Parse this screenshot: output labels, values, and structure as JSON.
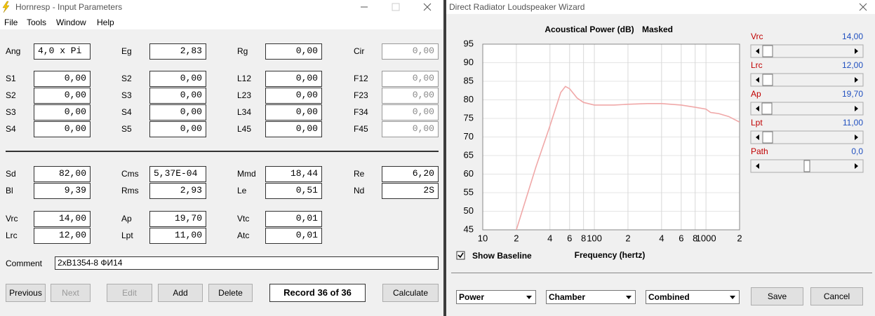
{
  "left_window": {
    "title": "Hornresp - Input Parameters",
    "menu": [
      "File",
      "Tools",
      "Window",
      "Help"
    ],
    "rows": [
      [
        {
          "label": "Ang",
          "value": "4,0 x Pi"
        },
        {
          "label": "Eg",
          "value": "2,83"
        },
        {
          "label": "Rg",
          "value": "0,00"
        },
        {
          "label": "Cir",
          "value": "0,00"
        }
      ],
      [
        {
          "label": "S1",
          "value": "0,00"
        },
        {
          "label": "S2",
          "value": "0,00"
        },
        {
          "label": "L12",
          "value": "0,00"
        },
        {
          "label": "F12",
          "value": "0,00"
        }
      ],
      [
        {
          "label": "S2",
          "value": "0,00"
        },
        {
          "label": "S3",
          "value": "0,00"
        },
        {
          "label": "L23",
          "value": "0,00"
        },
        {
          "label": "F23",
          "value": "0,00"
        }
      ],
      [
        {
          "label": "S3",
          "value": "0,00"
        },
        {
          "label": "S4",
          "value": "0,00"
        },
        {
          "label": "L34",
          "value": "0,00"
        },
        {
          "label": "F34",
          "value": "0,00"
        }
      ],
      [
        {
          "label": "S4",
          "value": "0,00"
        },
        {
          "label": "S5",
          "value": "0,00"
        },
        {
          "label": "L45",
          "value": "0,00"
        },
        {
          "label": "F45",
          "value": "0,00"
        }
      ],
      [
        {
          "label": "Sd",
          "value": "82,00"
        },
        {
          "label": "Cms",
          "value": "5,37E-04"
        },
        {
          "label": "Mmd",
          "value": "18,44"
        },
        {
          "label": "Re",
          "value": "6,20"
        }
      ],
      [
        {
          "label": "Bl",
          "value": "9,39"
        },
        {
          "label": "Rms",
          "value": "2,93"
        },
        {
          "label": "Le",
          "value": "0,51"
        },
        {
          "label": "Nd",
          "value": "2S"
        }
      ],
      [
        {
          "label": "Vrc",
          "value": "14,00"
        },
        {
          "label": "Ap",
          "value": "19,70"
        },
        {
          "label": "Vtc",
          "value": "0,01"
        },
        null
      ],
      [
        {
          "label": "Lrc",
          "value": "12,00"
        },
        {
          "label": "Lpt",
          "value": "11,00"
        },
        {
          "label": "Atc",
          "value": "0,01"
        },
        null
      ]
    ],
    "comment": {
      "label": "Comment",
      "value": "2xB1354-8 ФИ14"
    },
    "buttons": [
      "Previous",
      "Next",
      "Edit",
      "Add",
      "Delete"
    ],
    "record": "Record 36 of 36",
    "calculate": "Calculate"
  },
  "right_window": {
    "title": "Direct Radiator Loudspeaker Wizard",
    "sliders": [
      {
        "label": "Vrc",
        "value": "14,00"
      },
      {
        "label": "Lrc",
        "value": "12,00"
      },
      {
        "label": "Ap",
        "value": "19,70"
      },
      {
        "label": "Lpt",
        "value": "11,00"
      },
      {
        "label": "Path",
        "value": "0,0"
      }
    ],
    "show_baseline": "Show Baseline",
    "dropdowns": [
      "Power",
      "Chamber",
      "Combined"
    ],
    "buttons": [
      "Save",
      "Cancel"
    ]
  },
  "chart_data": {
    "type": "line",
    "title": "Acoustical Power (dB)",
    "subtitle": "Masked",
    "x_label": "Frequency (hertz)",
    "x": [
      20,
      30,
      40,
      50,
      55,
      60,
      70,
      80,
      100,
      150,
      200,
      300,
      400,
      600,
      800,
      1000,
      1100,
      1300,
      1600,
      2000
    ],
    "values": [
      45,
      62,
      73,
      82,
      83.6,
      83,
      80.5,
      79.3,
      78.6,
      78.6,
      78.8,
      79,
      79,
      78.6,
      78,
      77.5,
      76.6,
      76.3,
      75.5,
      74
    ],
    "color": "#f0a8a8",
    "log_x": true,
    "grid": true,
    "xlim": [
      10,
      2000
    ],
    "ylim": [
      45,
      95
    ],
    "xticks": [
      10,
      {
        "value": 20,
        "label": "2"
      },
      {
        "value": 40,
        "label": "4"
      },
      {
        "value": 60,
        "label": "6"
      },
      {
        "value": 80,
        "label": "8"
      },
      100,
      {
        "value": 200,
        "label": "2"
      },
      {
        "value": 400,
        "label": "4"
      },
      {
        "value": 600,
        "label": "6"
      },
      {
        "value": 800,
        "label": "8"
      },
      1000,
      {
        "value": 2000,
        "label": "2"
      }
    ],
    "yticks": [
      45,
      50,
      55,
      60,
      65,
      70,
      75,
      80,
      85,
      90,
      95
    ]
  }
}
